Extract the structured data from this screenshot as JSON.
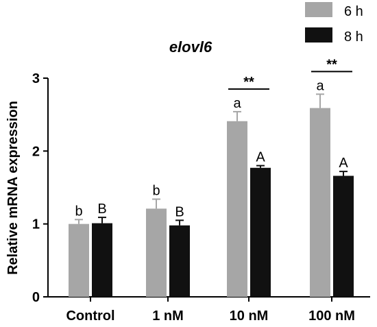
{
  "chart_data": {
    "type": "bar",
    "title": "elovl6",
    "ylabel": "Relative mRNA expression",
    "xlabel": "",
    "categories": [
      "Control",
      "1 nM",
      "10  nM",
      "100 nM"
    ],
    "ylim": [
      0,
      3
    ],
    "yticks": [
      0,
      1,
      2,
      3
    ],
    "series": [
      {
        "name": "6 h",
        "color": "#a6a6a6",
        "values": [
          1.0,
          1.21,
          2.41,
          2.59
        ],
        "errors": [
          0.06,
          0.13,
          0.13,
          0.19
        ],
        "labels": [
          "b",
          "b",
          "a",
          "a"
        ]
      },
      {
        "name": "8 h",
        "color": "#111111",
        "values": [
          1.01,
          0.98,
          1.77,
          1.66
        ],
        "errors": [
          0.08,
          0.07,
          0.03,
          0.06
        ],
        "labels": [
          "B",
          "B",
          "A",
          "A"
        ]
      }
    ],
    "significance": [
      {
        "category": "10  nM",
        "label": "**"
      },
      {
        "category": "100 nM",
        "label": "**"
      }
    ],
    "legend_position": "top-right",
    "grid": false
  }
}
